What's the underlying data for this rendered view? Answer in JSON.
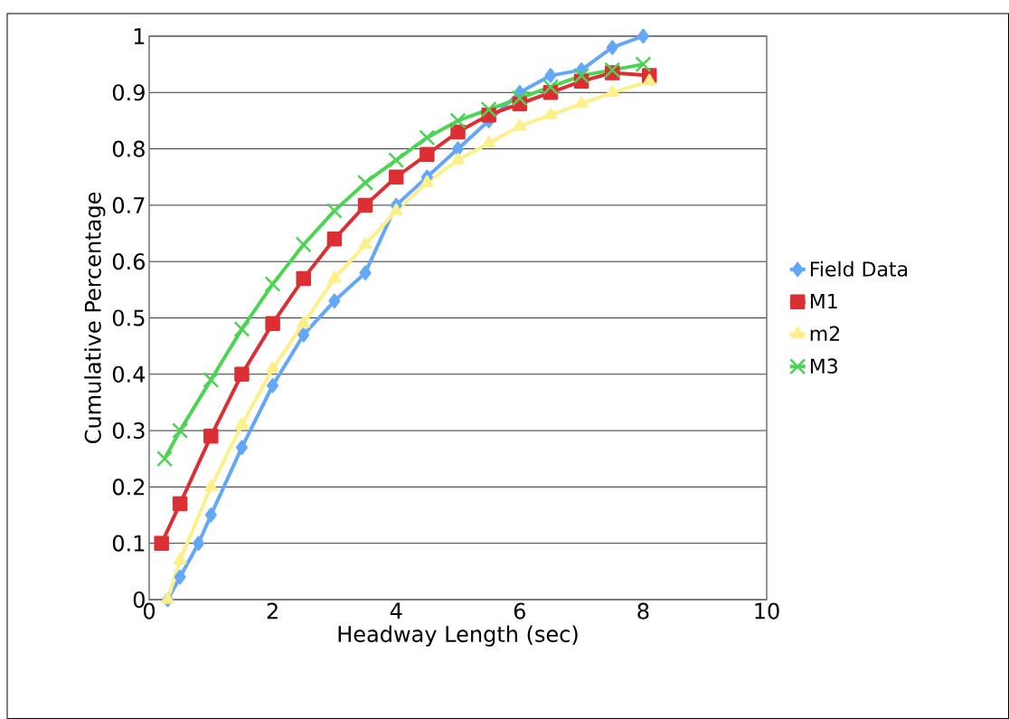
{
  "chart_data": {
    "type": "line",
    "xlabel": "Headway Length (sec)",
    "ylabel": "Cumulative Percentage",
    "xlim": [
      0,
      10
    ],
    "xticks": [
      0,
      2,
      4,
      6,
      8,
      10
    ],
    "ylim": [
      0,
      1
    ],
    "yticks": [
      0,
      0.1,
      0.2,
      0.3,
      0.4,
      0.5,
      0.6,
      0.7,
      0.8,
      0.9,
      1
    ],
    "grid": "y",
    "legend": "right",
    "series": [
      {
        "name": "Field Data",
        "color": "#63a8f8",
        "marker": "diamond",
        "x": [
          0.3,
          0.5,
          0.8,
          1.0,
          1.5,
          2.0,
          2.5,
          3.0,
          3.5,
          4.0,
          4.5,
          5.0,
          5.5,
          6.0,
          6.5,
          7.0,
          7.5,
          8.0
        ],
        "values": [
          0.0,
          0.04,
          0.1,
          0.15,
          0.27,
          0.38,
          0.47,
          0.53,
          0.58,
          0.7,
          0.75,
          0.8,
          0.85,
          0.9,
          0.93,
          0.94,
          0.98,
          1.0
        ]
      },
      {
        "name": "M1",
        "color": "#dc2f34",
        "marker": "square",
        "x": [
          0.2,
          0.5,
          1.0,
          1.5,
          2.0,
          2.5,
          3.0,
          3.5,
          4.0,
          4.5,
          5.0,
          5.5,
          6.0,
          6.5,
          7.0,
          7.5,
          8.1
        ],
        "values": [
          0.1,
          0.17,
          0.29,
          0.4,
          0.49,
          0.57,
          0.64,
          0.7,
          0.75,
          0.79,
          0.83,
          0.86,
          0.88,
          0.9,
          0.92,
          0.935,
          0.93
        ]
      },
      {
        "name": "m2",
        "color": "#fdf08a",
        "marker": "triangle",
        "x": [
          0.3,
          0.5,
          1.0,
          1.5,
          2.0,
          2.5,
          3.0,
          3.5,
          4.0,
          4.5,
          5.0,
          5.5,
          6.0,
          6.5,
          7.0,
          7.5,
          8.1
        ],
        "values": [
          0.0,
          0.07,
          0.2,
          0.31,
          0.41,
          0.49,
          0.57,
          0.63,
          0.69,
          0.74,
          0.78,
          0.81,
          0.84,
          0.86,
          0.88,
          0.9,
          0.92
        ]
      },
      {
        "name": "M3",
        "color": "#4cd454",
        "marker": "cross",
        "x": [
          0.25,
          0.5,
          1.0,
          1.5,
          2.0,
          2.5,
          3.0,
          3.5,
          4.0,
          4.5,
          5.0,
          5.5,
          6.0,
          6.5,
          7.0,
          7.5,
          8.0
        ],
        "values": [
          0.25,
          0.3,
          0.39,
          0.48,
          0.56,
          0.63,
          0.69,
          0.74,
          0.78,
          0.82,
          0.85,
          0.87,
          0.89,
          0.91,
          0.93,
          0.94,
          0.95
        ]
      }
    ]
  }
}
